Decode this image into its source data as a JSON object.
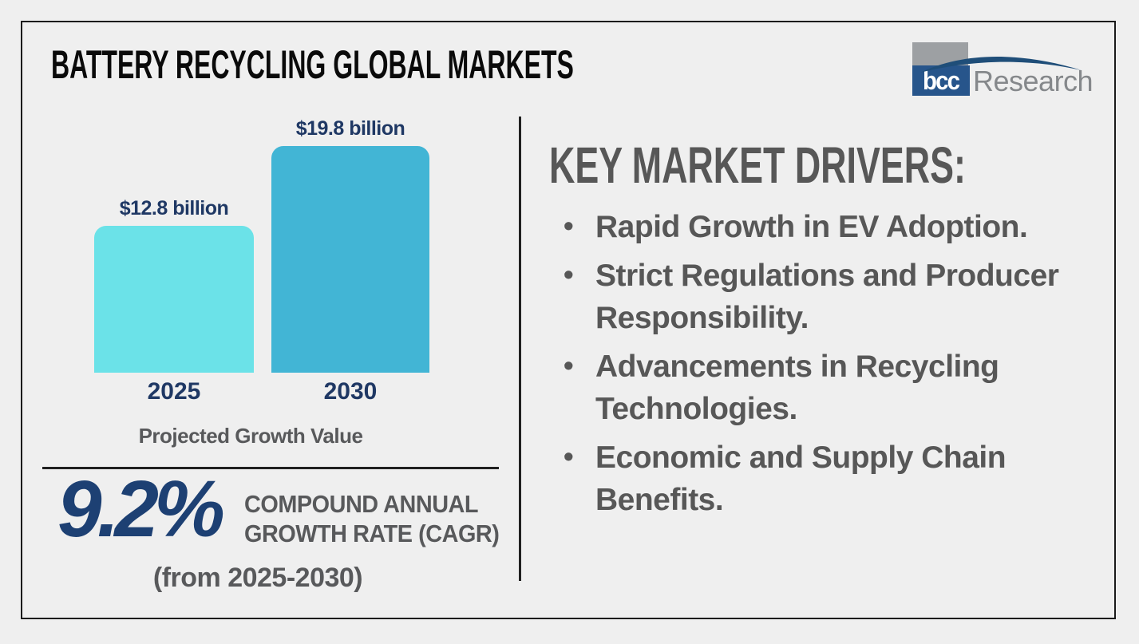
{
  "page": {
    "title": "BATTERY RECYCLING GLOBAL MARKETS"
  },
  "logo": {
    "bcc": "bcc",
    "research": "Research"
  },
  "chart_data": {
    "type": "bar",
    "title": "Projected Growth Value",
    "categories": [
      "2025",
      "2030"
    ],
    "values": [
      12.8,
      19.8
    ],
    "unit": "USD billion",
    "value_labels": [
      "$12.8 billion",
      "$19.8 billion"
    ],
    "ylim": [
      0,
      20
    ],
    "grid": false,
    "legend": false,
    "bar_colors": [
      "#6BE2E8",
      "#42B5D5"
    ]
  },
  "cagr": {
    "value": "9.2%",
    "label_lines": [
      "COMPOUND ANNUAL",
      "GROWTH RATE (CAGR)"
    ],
    "period": "(from 2025-2030)"
  },
  "drivers": {
    "heading": "KEY MARKET DRIVERS:",
    "bullet_glyph": "•",
    "items": [
      "Rapid Growth in EV Adoption.",
      "Strict Regulations and Producer Responsibility.",
      "Advancements in Recycling Technologies.",
      "Economic and Supply Chain Benefits."
    ]
  },
  "colors": {
    "background": "#EFEFEF",
    "frame": "#1B1B1B",
    "navy_label": "#1F3864",
    "navy_cagr": "#1D4073",
    "gray_text": "#58595B",
    "drivers_gray": "#575757",
    "bar_2025": "#6BE2E8",
    "bar_2030": "#42B5D5",
    "logo_gray_block": "#9DA0A3",
    "logo_blue_block": "#27558B",
    "logo_swoosh": "#1F4E79",
    "logo_research_text": "#85888B"
  }
}
